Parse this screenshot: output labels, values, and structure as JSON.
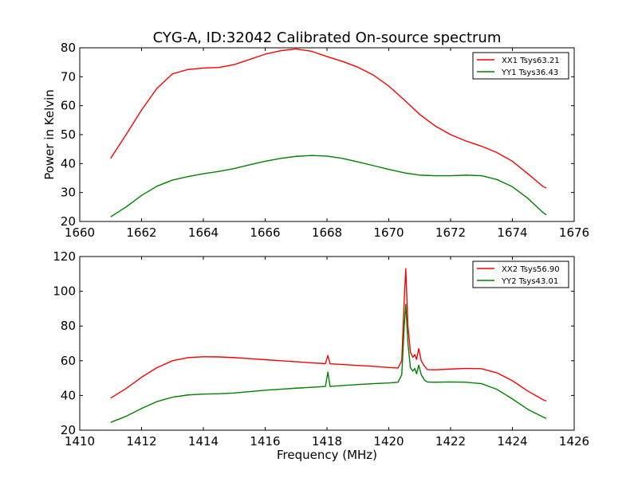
{
  "figure": {
    "title": "CYG-A, ID:32042 Calibrated On-source spectrum",
    "ylabel": "Power in Kelvin",
    "xlabel": "Frequency (MHz)"
  },
  "chart_data": [
    {
      "type": "line",
      "xlim": [
        1660,
        1676
      ],
      "ylim": [
        20,
        80
      ],
      "xticks": [
        "1660",
        "1662",
        "1664",
        "1666",
        "1668",
        "1670",
        "1672",
        "1674",
        "1676"
      ],
      "yticks": [
        "20",
        "30",
        "40",
        "50",
        "60",
        "70",
        "80"
      ],
      "legend_position": "top-right",
      "series": [
        {
          "name": "XX1 Tsys63.21",
          "color": "#ff0000",
          "points": [
            [
              1661.0,
              41.8
            ],
            [
              1661.5,
              50.0
            ],
            [
              1662.0,
              58.5
            ],
            [
              1662.5,
              66.0
            ],
            [
              1663.0,
              71.0
            ],
            [
              1663.5,
              72.5
            ],
            [
              1664.0,
              73.0
            ],
            [
              1664.5,
              73.2
            ],
            [
              1665.0,
              74.2
            ],
            [
              1665.5,
              76.0
            ],
            [
              1666.0,
              77.8
            ],
            [
              1666.5,
              79.0
            ],
            [
              1667.0,
              79.6
            ],
            [
              1667.5,
              78.8
            ],
            [
              1668.0,
              77.0
            ],
            [
              1668.5,
              75.3
            ],
            [
              1669.0,
              73.3
            ],
            [
              1669.5,
              70.6
            ],
            [
              1670.0,
              66.8
            ],
            [
              1670.5,
              62.0
            ],
            [
              1671.0,
              57.0
            ],
            [
              1671.5,
              53.0
            ],
            [
              1672.0,
              50.0
            ],
            [
              1672.5,
              47.8
            ],
            [
              1673.0,
              46.0
            ],
            [
              1673.5,
              43.8
            ],
            [
              1674.0,
              40.8
            ],
            [
              1674.5,
              36.5
            ],
            [
              1675.0,
              32.0
            ],
            [
              1675.1,
              31.6
            ]
          ]
        },
        {
          "name": "YY1 Tsys36.43",
          "color": "#008000",
          "points": [
            [
              1661.0,
              21.6
            ],
            [
              1661.5,
              25.0
            ],
            [
              1662.0,
              29.0
            ],
            [
              1662.5,
              32.2
            ],
            [
              1663.0,
              34.3
            ],
            [
              1663.5,
              35.5
            ],
            [
              1664.0,
              36.5
            ],
            [
              1664.5,
              37.3
            ],
            [
              1665.0,
              38.3
            ],
            [
              1665.5,
              39.6
            ],
            [
              1666.0,
              40.8
            ],
            [
              1666.5,
              41.8
            ],
            [
              1667.0,
              42.5
            ],
            [
              1667.5,
              42.8
            ],
            [
              1668.0,
              42.6
            ],
            [
              1668.5,
              41.8
            ],
            [
              1669.0,
              40.6
            ],
            [
              1669.5,
              39.3
            ],
            [
              1670.0,
              38.0
            ],
            [
              1670.5,
              36.8
            ],
            [
              1671.0,
              36.0
            ],
            [
              1671.5,
              35.8
            ],
            [
              1672.0,
              35.8
            ],
            [
              1672.5,
              36.0
            ],
            [
              1673.0,
              35.8
            ],
            [
              1673.5,
              34.5
            ],
            [
              1674.0,
              32.0
            ],
            [
              1674.5,
              28.0
            ],
            [
              1675.0,
              23.0
            ],
            [
              1675.1,
              22.3
            ]
          ]
        }
      ]
    },
    {
      "type": "line",
      "xlim": [
        1410,
        1426
      ],
      "ylim": [
        20,
        120
      ],
      "xticks": [
        "1410",
        "1412",
        "1414",
        "1416",
        "1418",
        "1420",
        "1422",
        "1424",
        "1426"
      ],
      "yticks": [
        "20",
        "40",
        "60",
        "80",
        "100",
        "120"
      ],
      "legend_position": "top-right",
      "series": [
        {
          "name": "XX2 Tsys56.90",
          "color": "#ff0000",
          "points": [
            [
              1411.0,
              38.5
            ],
            [
              1411.5,
              44.0
            ],
            [
              1412.0,
              50.5
            ],
            [
              1412.5,
              56.0
            ],
            [
              1413.0,
              60.0
            ],
            [
              1413.5,
              61.8
            ],
            [
              1414.0,
              62.3
            ],
            [
              1414.5,
              62.2
            ],
            [
              1415.0,
              61.8
            ],
            [
              1415.5,
              61.2
            ],
            [
              1416.0,
              60.6
            ],
            [
              1416.5,
              60.0
            ],
            [
              1417.0,
              59.4
            ],
            [
              1417.5,
              58.8
            ],
            [
              1417.95,
              58.3
            ],
            [
              1418.03,
              63.0
            ],
            [
              1418.1,
              58.2
            ],
            [
              1418.5,
              57.8
            ],
            [
              1419.0,
              57.3
            ],
            [
              1419.5,
              56.8
            ],
            [
              1420.0,
              56.1
            ],
            [
              1420.3,
              55.8
            ],
            [
              1420.42,
              60.0
            ],
            [
              1420.5,
              95.0
            ],
            [
              1420.55,
              113.0
            ],
            [
              1420.62,
              80.0
            ],
            [
              1420.7,
              65.0
            ],
            [
              1420.78,
              62.0
            ],
            [
              1420.84,
              63.5
            ],
            [
              1420.9,
              60.8
            ],
            [
              1420.97,
              67.0
            ],
            [
              1421.05,
              60.0
            ],
            [
              1421.15,
              57.0
            ],
            [
              1421.25,
              54.9
            ],
            [
              1421.5,
              54.8
            ],
            [
              1422.0,
              55.2
            ],
            [
              1422.5,
              55.6
            ],
            [
              1423.0,
              55.4
            ],
            [
              1423.5,
              53.0
            ],
            [
              1424.0,
              48.5
            ],
            [
              1424.5,
              42.5
            ],
            [
              1425.0,
              37.5
            ],
            [
              1425.1,
              36.8
            ]
          ]
        },
        {
          "name": "YY2 Tsys43.01",
          "color": "#008000",
          "points": [
            [
              1411.0,
              24.5
            ],
            [
              1411.5,
              28.0
            ],
            [
              1412.0,
              32.5
            ],
            [
              1412.5,
              36.5
            ],
            [
              1413.0,
              39.0
            ],
            [
              1413.5,
              40.3
            ],
            [
              1414.0,
              40.8
            ],
            [
              1414.5,
              41.0
            ],
            [
              1415.0,
              41.4
            ],
            [
              1415.5,
              42.2
            ],
            [
              1416.0,
              43.0
            ],
            [
              1416.5,
              43.6
            ],
            [
              1417.0,
              44.2
            ],
            [
              1417.5,
              44.7
            ],
            [
              1417.95,
              45.2
            ],
            [
              1418.03,
              53.5
            ],
            [
              1418.1,
              45.2
            ],
            [
              1418.5,
              45.7
            ],
            [
              1419.0,
              46.3
            ],
            [
              1419.5,
              46.8
            ],
            [
              1420.0,
              47.2
            ],
            [
              1420.3,
              47.6
            ],
            [
              1420.42,
              52.0
            ],
            [
              1420.5,
              80.0
            ],
            [
              1420.55,
              92.5
            ],
            [
              1420.62,
              70.0
            ],
            [
              1420.7,
              56.0
            ],
            [
              1420.78,
              54.0
            ],
            [
              1420.84,
              55.5
            ],
            [
              1420.9,
              52.5
            ],
            [
              1420.97,
              57.5
            ],
            [
              1421.05,
              52.0
            ],
            [
              1421.15,
              49.0
            ],
            [
              1421.25,
              47.7
            ],
            [
              1421.5,
              47.6
            ],
            [
              1422.0,
              47.8
            ],
            [
              1422.5,
              47.6
            ],
            [
              1423.0,
              46.8
            ],
            [
              1423.5,
              43.5
            ],
            [
              1424.0,
              38.0
            ],
            [
              1424.5,
              32.0
            ],
            [
              1425.0,
              27.5
            ],
            [
              1425.1,
              26.8
            ]
          ]
        }
      ]
    }
  ]
}
